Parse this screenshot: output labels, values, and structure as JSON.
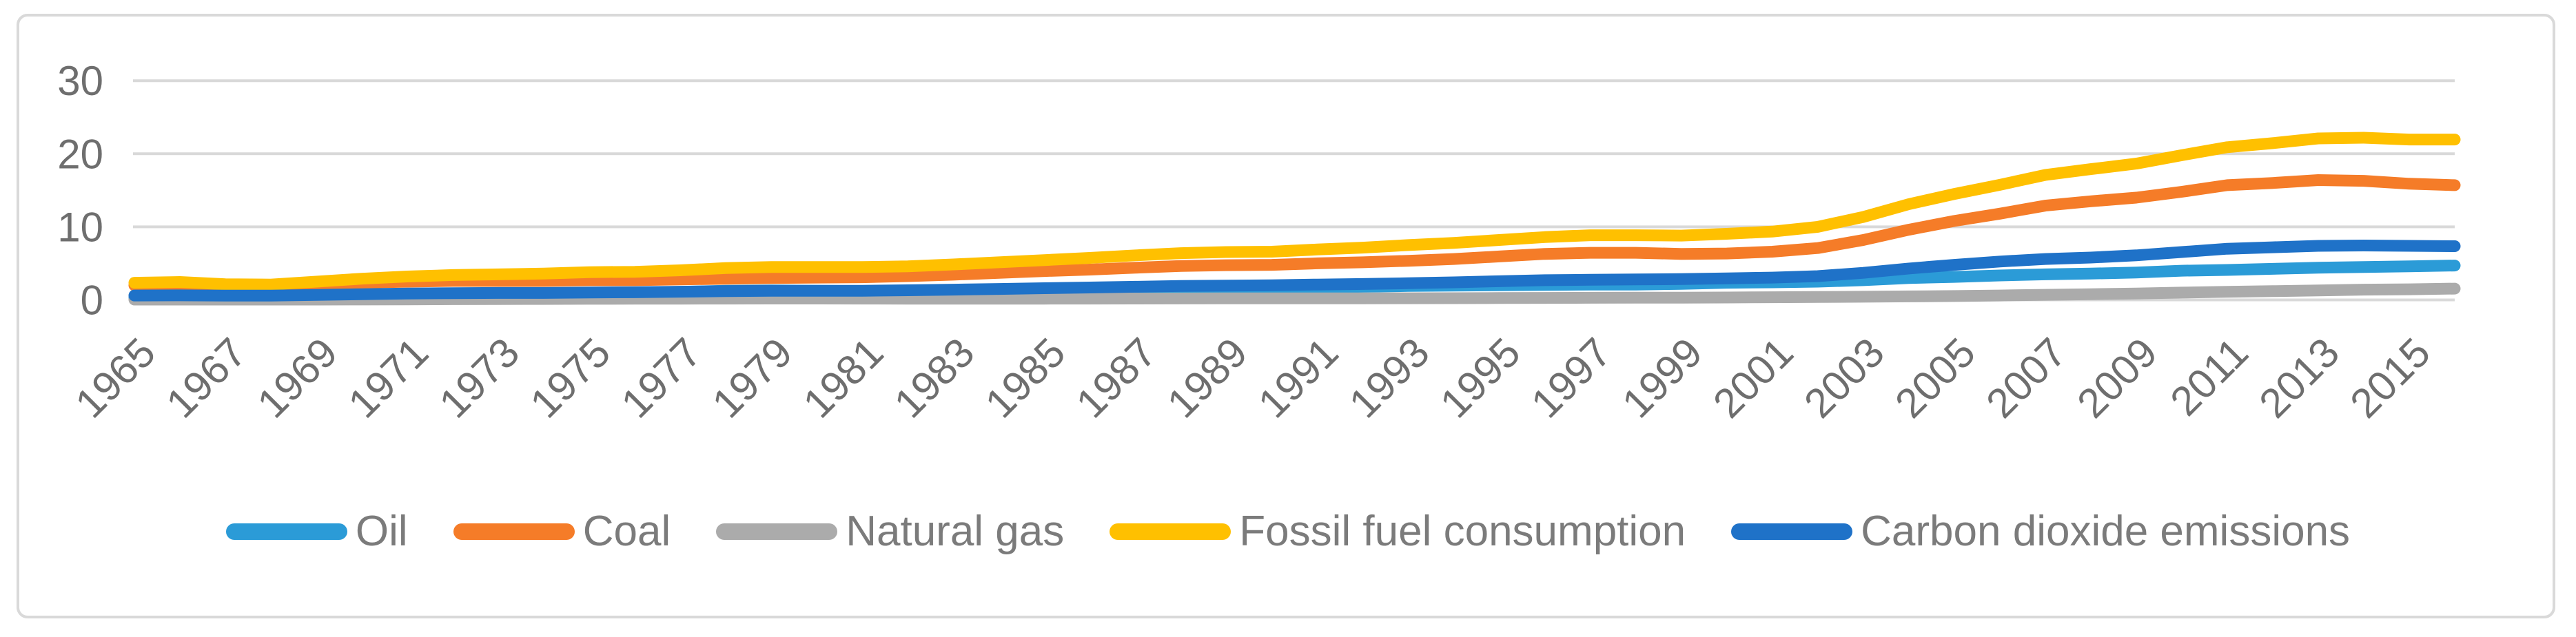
{
  "figure": {
    "background": "#ffffff",
    "border_color": "#d9d9d9"
  },
  "axes": {
    "tick_label_color": "#6e6e6e",
    "gridline_color": "#d9d9d9"
  },
  "legend": {
    "text_color": "#7b7b7b"
  },
  "chart_data": {
    "type": "line",
    "title": "",
    "xlabel": "",
    "ylabel": "",
    "ylim": [
      0,
      30
    ],
    "y_ticks": [
      0,
      10,
      20,
      30
    ],
    "grid": "horizontal",
    "legend_position": "bottom",
    "x": [
      1965,
      1966,
      1967,
      1968,
      1969,
      1970,
      1971,
      1972,
      1973,
      1974,
      1975,
      1976,
      1977,
      1978,
      1979,
      1980,
      1981,
      1982,
      1983,
      1984,
      1985,
      1986,
      1987,
      1988,
      1989,
      1990,
      1991,
      1992,
      1993,
      1994,
      1995,
      1996,
      1997,
      1998,
      1999,
      2000,
      2001,
      2002,
      2003,
      2004,
      2005,
      2006,
      2007,
      2008,
      2009,
      2010,
      2011,
      2012,
      2013,
      2014,
      2015,
      2016
    ],
    "x_tick_labels": [
      "1965",
      "1967",
      "1969",
      "1971",
      "1973",
      "1975",
      "1977",
      "1979",
      "1981",
      "1983",
      "1985",
      "1987",
      "1989",
      "1991",
      "1993",
      "1995",
      "1997",
      "1999",
      "2001",
      "2003",
      "2005",
      "2007",
      "2009",
      "2011",
      "2013",
      "2015"
    ],
    "series": [
      {
        "name": "Oil",
        "color": "#2B9BD7",
        "values": [
          0.3,
          0.32,
          0.3,
          0.32,
          0.4,
          0.5,
          0.6,
          0.7,
          0.8,
          0.85,
          0.95,
          1.0,
          1.1,
          1.25,
          1.3,
          1.25,
          1.2,
          1.2,
          1.25,
          1.3,
          1.35,
          1.4,
          1.5,
          1.55,
          1.6,
          1.6,
          1.7,
          1.8,
          1.9,
          1.95,
          2.0,
          2.05,
          2.1,
          2.1,
          2.2,
          2.35,
          2.4,
          2.5,
          2.7,
          3.0,
          3.15,
          3.35,
          3.5,
          3.6,
          3.75,
          4.0,
          4.1,
          4.25,
          4.4,
          4.5,
          4.6,
          4.7
        ]
      },
      {
        "name": "Coal",
        "color": "#F57C28",
        "values": [
          2.0,
          2.1,
          1.8,
          1.75,
          2.05,
          2.35,
          2.5,
          2.6,
          2.6,
          2.6,
          2.7,
          2.7,
          2.8,
          2.9,
          3.0,
          3.05,
          3.1,
          3.25,
          3.45,
          3.7,
          3.95,
          4.15,
          4.4,
          4.65,
          4.75,
          4.8,
          5.0,
          5.15,
          5.35,
          5.6,
          5.95,
          6.3,
          6.45,
          6.45,
          6.3,
          6.35,
          6.6,
          7.1,
          8.2,
          9.6,
          10.8,
          11.8,
          12.9,
          13.5,
          14.0,
          14.8,
          15.7,
          16.0,
          16.4,
          16.3,
          15.9,
          15.7
        ]
      },
      {
        "name": "Natural gas",
        "color": "#ABABAB",
        "values": [
          0.05,
          0.05,
          0.05,
          0.05,
          0.05,
          0.06,
          0.08,
          0.1,
          0.12,
          0.13,
          0.15,
          0.16,
          0.17,
          0.18,
          0.19,
          0.19,
          0.18,
          0.17,
          0.17,
          0.17,
          0.17,
          0.18,
          0.19,
          0.2,
          0.21,
          0.21,
          0.22,
          0.22,
          0.23,
          0.24,
          0.25,
          0.27,
          0.29,
          0.3,
          0.31,
          0.33,
          0.37,
          0.4,
          0.43,
          0.48,
          0.53,
          0.6,
          0.7,
          0.78,
          0.88,
          1.0,
          1.1,
          1.2,
          1.3,
          1.4,
          1.45,
          1.55
        ]
      },
      {
        "name": "Fossil fuel consumption",
        "color": "#FFC000",
        "values": [
          2.35,
          2.45,
          2.15,
          2.1,
          2.5,
          2.9,
          3.2,
          3.4,
          3.5,
          3.6,
          3.8,
          3.85,
          4.05,
          4.35,
          4.5,
          4.5,
          4.5,
          4.6,
          4.85,
          5.15,
          5.45,
          5.75,
          6.1,
          6.4,
          6.55,
          6.6,
          6.9,
          7.15,
          7.5,
          7.8,
          8.2,
          8.6,
          8.85,
          8.85,
          8.8,
          9.05,
          9.35,
          10.0,
          11.35,
          13.1,
          14.5,
          15.75,
          17.1,
          17.9,
          18.65,
          19.8,
          20.9,
          21.45,
          22.1,
          22.2,
          21.95,
          21.95
        ]
      },
      {
        "name": "Carbon dioxide emissions",
        "color": "#1F72C8",
        "values": [
          0.6,
          0.62,
          0.58,
          0.58,
          0.68,
          0.78,
          0.88,
          0.92,
          0.95,
          0.95,
          1.02,
          1.05,
          1.12,
          1.2,
          1.25,
          1.25,
          1.25,
          1.32,
          1.4,
          1.5,
          1.6,
          1.7,
          1.8,
          1.9,
          1.95,
          2.0,
          2.1,
          2.18,
          2.28,
          2.4,
          2.55,
          2.7,
          2.75,
          2.8,
          2.85,
          2.95,
          3.05,
          3.25,
          3.7,
          4.3,
          4.8,
          5.25,
          5.6,
          5.8,
          6.1,
          6.55,
          7.0,
          7.2,
          7.4,
          7.45,
          7.4,
          7.35
        ]
      }
    ]
  }
}
